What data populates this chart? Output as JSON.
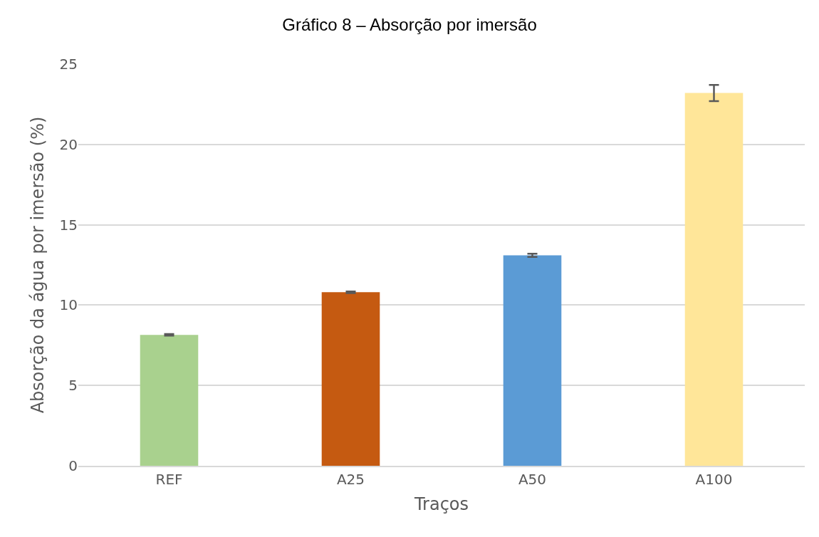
{
  "chart_data": {
    "type": "bar",
    "title": "Gráfico 8 – Absorção por imersão",
    "xlabel": "Traços",
    "ylabel": "Absorção da água por imersão (%)",
    "categories": [
      "REF",
      "A25",
      "A50",
      "A100"
    ],
    "values": [
      8.15,
      10.8,
      13.1,
      23.2
    ],
    "errors": [
      0.05,
      0.05,
      0.1,
      0.5
    ],
    "colors": [
      "#a9d18e",
      "#c55a11",
      "#5b9bd5",
      "#ffe699"
    ],
    "ylim": [
      0,
      25
    ],
    "yticks": [
      0,
      5,
      10,
      15,
      20,
      25
    ],
    "grid": "y"
  }
}
